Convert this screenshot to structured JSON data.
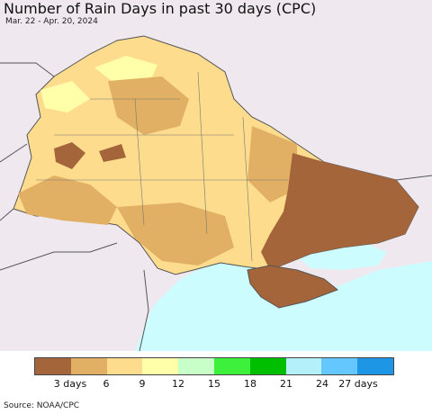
{
  "title": "Number of Rain Days in past 30 days (CPC)",
  "subtitle": "Mar. 22 - Apr. 20, 2024",
  "source": "Source: NOAA/CPC",
  "legend": {
    "colors": [
      "#a5653a",
      "#e2b064",
      "#fddc8e",
      "#ffffaa",
      "#c8ffc8",
      "#3cf03c",
      "#00be00",
      "#b4f0fa",
      "#64c8ff",
      "#1e96e6"
    ],
    "labels": [
      "3 days",
      "6",
      "9",
      "12",
      "15",
      "18",
      "21",
      "24",
      "27 days"
    ]
  },
  "map_colors": {
    "sea": "#cdfcfe",
    "background": "#efe9ef",
    "border": "#555555"
  }
}
